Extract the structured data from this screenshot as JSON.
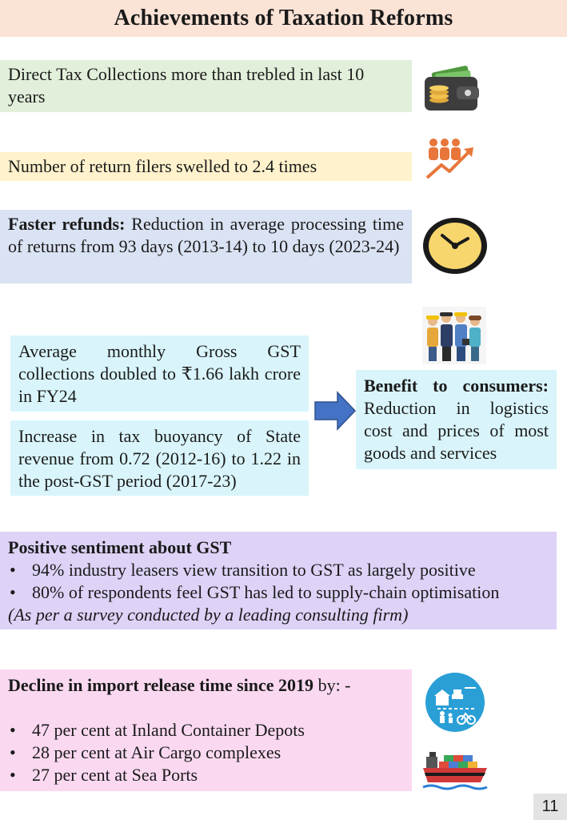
{
  "page": {
    "title": "Achievements of Taxation Reforms",
    "page_number": "11"
  },
  "sections": {
    "direct_tax": {
      "text": "Direct Tax Collections more than trebled in last 10 years",
      "icon": "wallet-icon"
    },
    "return_filers": {
      "text": "Number of return filers swelled to 2.4 times",
      "icon": "people-growth-icon"
    },
    "faster_refunds": {
      "bold": "Faster refunds:",
      "text": " Reduction in average processing time of returns from 93 days (2013-14) to 10 days (2023-24)",
      "icon": "clock-icon"
    },
    "gst_collections": {
      "text": "Average monthly Gross GST collections doubled to ₹1.66 lakh crore in FY24"
    },
    "tax_buoyancy": {
      "text": "Increase in tax buoyancy of State revenue from 0.72 (2012-16) to 1.22 in the post-GST period (2017-23)"
    },
    "consumer_benefit": {
      "bold": "Benefit to consumers:",
      "text": " Reduction in logistics cost and prices of most goods and services",
      "icon": "workers-icon"
    },
    "sentiment": {
      "heading": "Positive sentiment about GST",
      "bullets": [
        "94% industry leasers view transition to GST as largely positive",
        "80% of respondents feel GST has led to supply-chain optimisation"
      ],
      "note": "(As per a survey conducted by a leading consulting firm)"
    },
    "import_release": {
      "heading_bold": "Decline in import release time since 2019",
      "heading_rest": " by: -",
      "bullets": [
        "47 per cent at Inland Container Depots",
        "28 per cent at Air Cargo complexes",
        "27 per cent at Sea Ports"
      ],
      "icons": [
        "logistics-icon",
        "cargo-ship-icon"
      ]
    }
  },
  "colors": {
    "title_bg": "#fbe3d6",
    "green": "#e2efda",
    "yellow": "#fff2cc",
    "blue": "#dae3f3",
    "cyan": "#d9f5fb",
    "lavender": "#ded2f7",
    "pink": "#fad9f0",
    "arrow": "#4472c4"
  }
}
